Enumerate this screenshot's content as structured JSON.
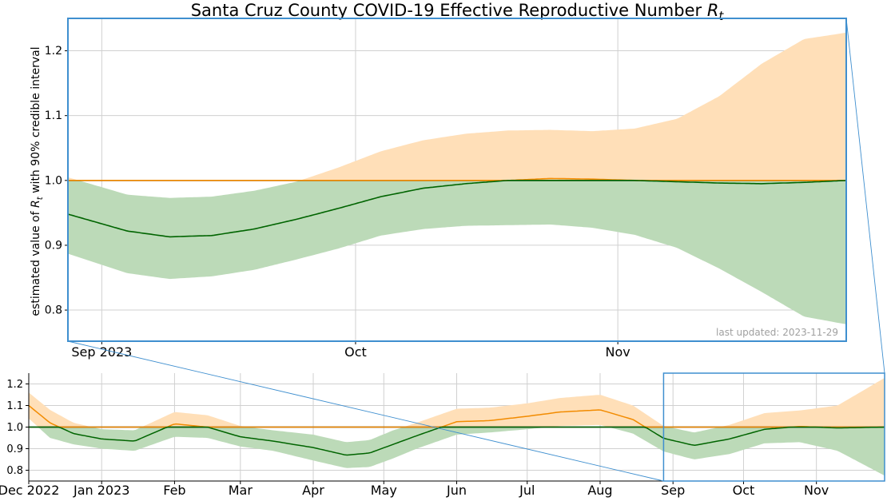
{
  "chart_data": [
    {
      "type": "area",
      "panel": "zoom",
      "title_main": "Santa Cruz County COVID-19 Effective Reproductive Number ",
      "title_symbol": "R",
      "title_subscript": "t",
      "ylabel_prefix": "estimated value of ",
      "ylabel_symbol": "R",
      "ylabel_subscript": "t",
      "ylabel_suffix": " with 90% credible interval",
      "annotation": "last updated: 2023-11-29",
      "x_tick_labels": [
        "Sep 2023",
        "Oct",
        "Nov"
      ],
      "x_ticks": [
        "2023-09-01",
        "2023-10-01",
        "2023-11-01"
      ],
      "xlim": [
        "2023-08-28",
        "2023-11-28"
      ],
      "y_ticks": [
        0.8,
        0.9,
        1.0,
        1.1,
        1.2
      ],
      "y_tick_labels": [
        "0.8",
        "0.9",
        "1.0",
        "1.1",
        "1.2"
      ],
      "ylim": [
        0.752,
        1.25
      ],
      "reference_line": 1.0,
      "grid": true,
      "colors": {
        "above_fill": "#ffdfb8",
        "below_fill": "#bcdab8",
        "above_line": "#f28b00",
        "below_line": "#006400",
        "frame": "#3f8fcf",
        "reference": "#000000",
        "grid": "#d0d0d0",
        "annotation": "#a0a0a0"
      },
      "series": [
        {
          "role": "estimate",
          "x": [
            "2023-08-28",
            "2023-09-04",
            "2023-09-09",
            "2023-09-14",
            "2023-09-19",
            "2023-09-24",
            "2023-09-29",
            "2023-10-04",
            "2023-10-09",
            "2023-10-14",
            "2023-10-19",
            "2023-10-24",
            "2023-10-29",
            "2023-11-03",
            "2023-11-08",
            "2023-11-13",
            "2023-11-18",
            "2023-11-23",
            "2023-11-28"
          ],
          "values": [
            0.948,
            0.922,
            0.913,
            0.915,
            0.925,
            0.94,
            0.957,
            0.975,
            0.988,
            0.995,
            1.0,
            1.003,
            1.002,
            1.0,
            0.998,
            0.996,
            0.995,
            0.997,
            1.0
          ]
        },
        {
          "role": "lower_90",
          "x": [
            "2023-08-28",
            "2023-09-04",
            "2023-09-09",
            "2023-09-14",
            "2023-09-19",
            "2023-09-24",
            "2023-09-29",
            "2023-10-04",
            "2023-10-09",
            "2023-10-14",
            "2023-10-19",
            "2023-10-24",
            "2023-10-29",
            "2023-11-03",
            "2023-11-08",
            "2023-11-13",
            "2023-11-18",
            "2023-11-23",
            "2023-11-28"
          ],
          "values": [
            0.887,
            0.857,
            0.848,
            0.852,
            0.862,
            0.878,
            0.895,
            0.915,
            0.925,
            0.93,
            0.931,
            0.932,
            0.927,
            0.916,
            0.896,
            0.864,
            0.828,
            0.79,
            0.778
          ]
        },
        {
          "role": "upper_90",
          "x": [
            "2023-08-28",
            "2023-09-04",
            "2023-09-09",
            "2023-09-14",
            "2023-09-19",
            "2023-09-24",
            "2023-09-29",
            "2023-10-04",
            "2023-10-09",
            "2023-10-14",
            "2023-10-19",
            "2023-10-24",
            "2023-10-29",
            "2023-11-03",
            "2023-11-08",
            "2023-11-13",
            "2023-11-18",
            "2023-11-23",
            "2023-11-28"
          ],
          "values": [
            1.005,
            0.978,
            0.973,
            0.975,
            0.984,
            0.998,
            1.02,
            1.045,
            1.062,
            1.072,
            1.077,
            1.078,
            1.076,
            1.08,
            1.095,
            1.13,
            1.18,
            1.218,
            1.228
          ]
        }
      ]
    },
    {
      "type": "area",
      "panel": "overview",
      "x_tick_labels": [
        "Dec 2022",
        "Jan 2023",
        "Feb",
        "Mar",
        "Apr",
        "May",
        "Jun",
        "Jul",
        "Aug",
        "Sep",
        "Oct",
        "Nov"
      ],
      "x_ticks": [
        "2022-12-01",
        "2023-01-01",
        "2023-02-01",
        "2023-03-01",
        "2023-04-01",
        "2023-05-01",
        "2023-06-01",
        "2023-07-01",
        "2023-08-01",
        "2023-09-01",
        "2023-10-01",
        "2023-11-01"
      ],
      "xlim": [
        "2022-12-01",
        "2023-11-30"
      ],
      "y_ticks": [
        0.8,
        0.9,
        1.0,
        1.1,
        1.2
      ],
      "y_tick_labels": [
        "0.8",
        "0.9",
        "1.0",
        "1.1",
        "1.2"
      ],
      "ylim": [
        0.75,
        1.25
      ],
      "reference_line": 1.0,
      "grid": true,
      "zoom_window": [
        "2023-08-28",
        "2023-11-30"
      ],
      "series": [
        {
          "role": "estimate",
          "x": [
            "2022-12-01",
            "2022-12-10",
            "2022-12-20",
            "2023-01-01",
            "2023-01-15",
            "2023-02-01",
            "2023-02-15",
            "2023-03-01",
            "2023-03-15",
            "2023-04-01",
            "2023-04-15",
            "2023-04-25",
            "2023-05-05",
            "2023-05-15",
            "2023-06-01",
            "2023-06-15",
            "2023-07-01",
            "2023-07-15",
            "2023-08-01",
            "2023-08-15",
            "2023-08-28",
            "2023-09-10",
            "2023-09-25",
            "2023-10-10",
            "2023-10-25",
            "2023-11-10",
            "2023-11-30"
          ],
          "values": [
            1.1,
            1.02,
            0.97,
            0.945,
            0.935,
            1.015,
            1.0,
            0.955,
            0.935,
            0.905,
            0.87,
            0.88,
            0.92,
            0.96,
            1.025,
            1.03,
            1.05,
            1.07,
            1.08,
            1.035,
            0.948,
            0.915,
            0.945,
            0.99,
            1.003,
            0.996,
            1.0
          ]
        },
        {
          "role": "lower_90",
          "x": [
            "2022-12-01",
            "2022-12-10",
            "2022-12-20",
            "2023-01-01",
            "2023-01-15",
            "2023-02-01",
            "2023-02-15",
            "2023-03-01",
            "2023-03-15",
            "2023-04-01",
            "2023-04-15",
            "2023-04-25",
            "2023-05-05",
            "2023-05-15",
            "2023-06-01",
            "2023-06-15",
            "2023-07-01",
            "2023-07-15",
            "2023-08-01",
            "2023-08-15",
            "2023-08-28",
            "2023-09-10",
            "2023-09-25",
            "2023-10-10",
            "2023-10-25",
            "2023-11-10",
            "2023-11-30"
          ],
          "values": [
            1.04,
            0.95,
            0.92,
            0.9,
            0.89,
            0.955,
            0.95,
            0.91,
            0.89,
            0.845,
            0.81,
            0.815,
            0.855,
            0.9,
            0.965,
            0.975,
            0.99,
            1.005,
            1.01,
            0.97,
            0.887,
            0.85,
            0.875,
            0.925,
            0.93,
            0.89,
            0.775
          ]
        },
        {
          "role": "upper_90",
          "x": [
            "2022-12-01",
            "2022-12-10",
            "2022-12-20",
            "2023-01-01",
            "2023-01-15",
            "2023-02-01",
            "2023-02-15",
            "2023-03-01",
            "2023-03-15",
            "2023-04-01",
            "2023-04-15",
            "2023-04-25",
            "2023-05-05",
            "2023-05-15",
            "2023-06-01",
            "2023-06-15",
            "2023-07-01",
            "2023-07-15",
            "2023-08-01",
            "2023-08-15",
            "2023-08-28",
            "2023-09-10",
            "2023-09-25",
            "2023-10-10",
            "2023-10-25",
            "2023-11-10",
            "2023-11-30"
          ],
          "values": [
            1.16,
            1.08,
            1.02,
            0.99,
            0.985,
            1.07,
            1.055,
            1.005,
            0.985,
            0.965,
            0.93,
            0.94,
            0.985,
            1.02,
            1.085,
            1.09,
            1.11,
            1.135,
            1.15,
            1.1,
            1.005,
            0.975,
            1.01,
            1.065,
            1.077,
            1.1,
            1.228
          ]
        }
      ]
    }
  ]
}
